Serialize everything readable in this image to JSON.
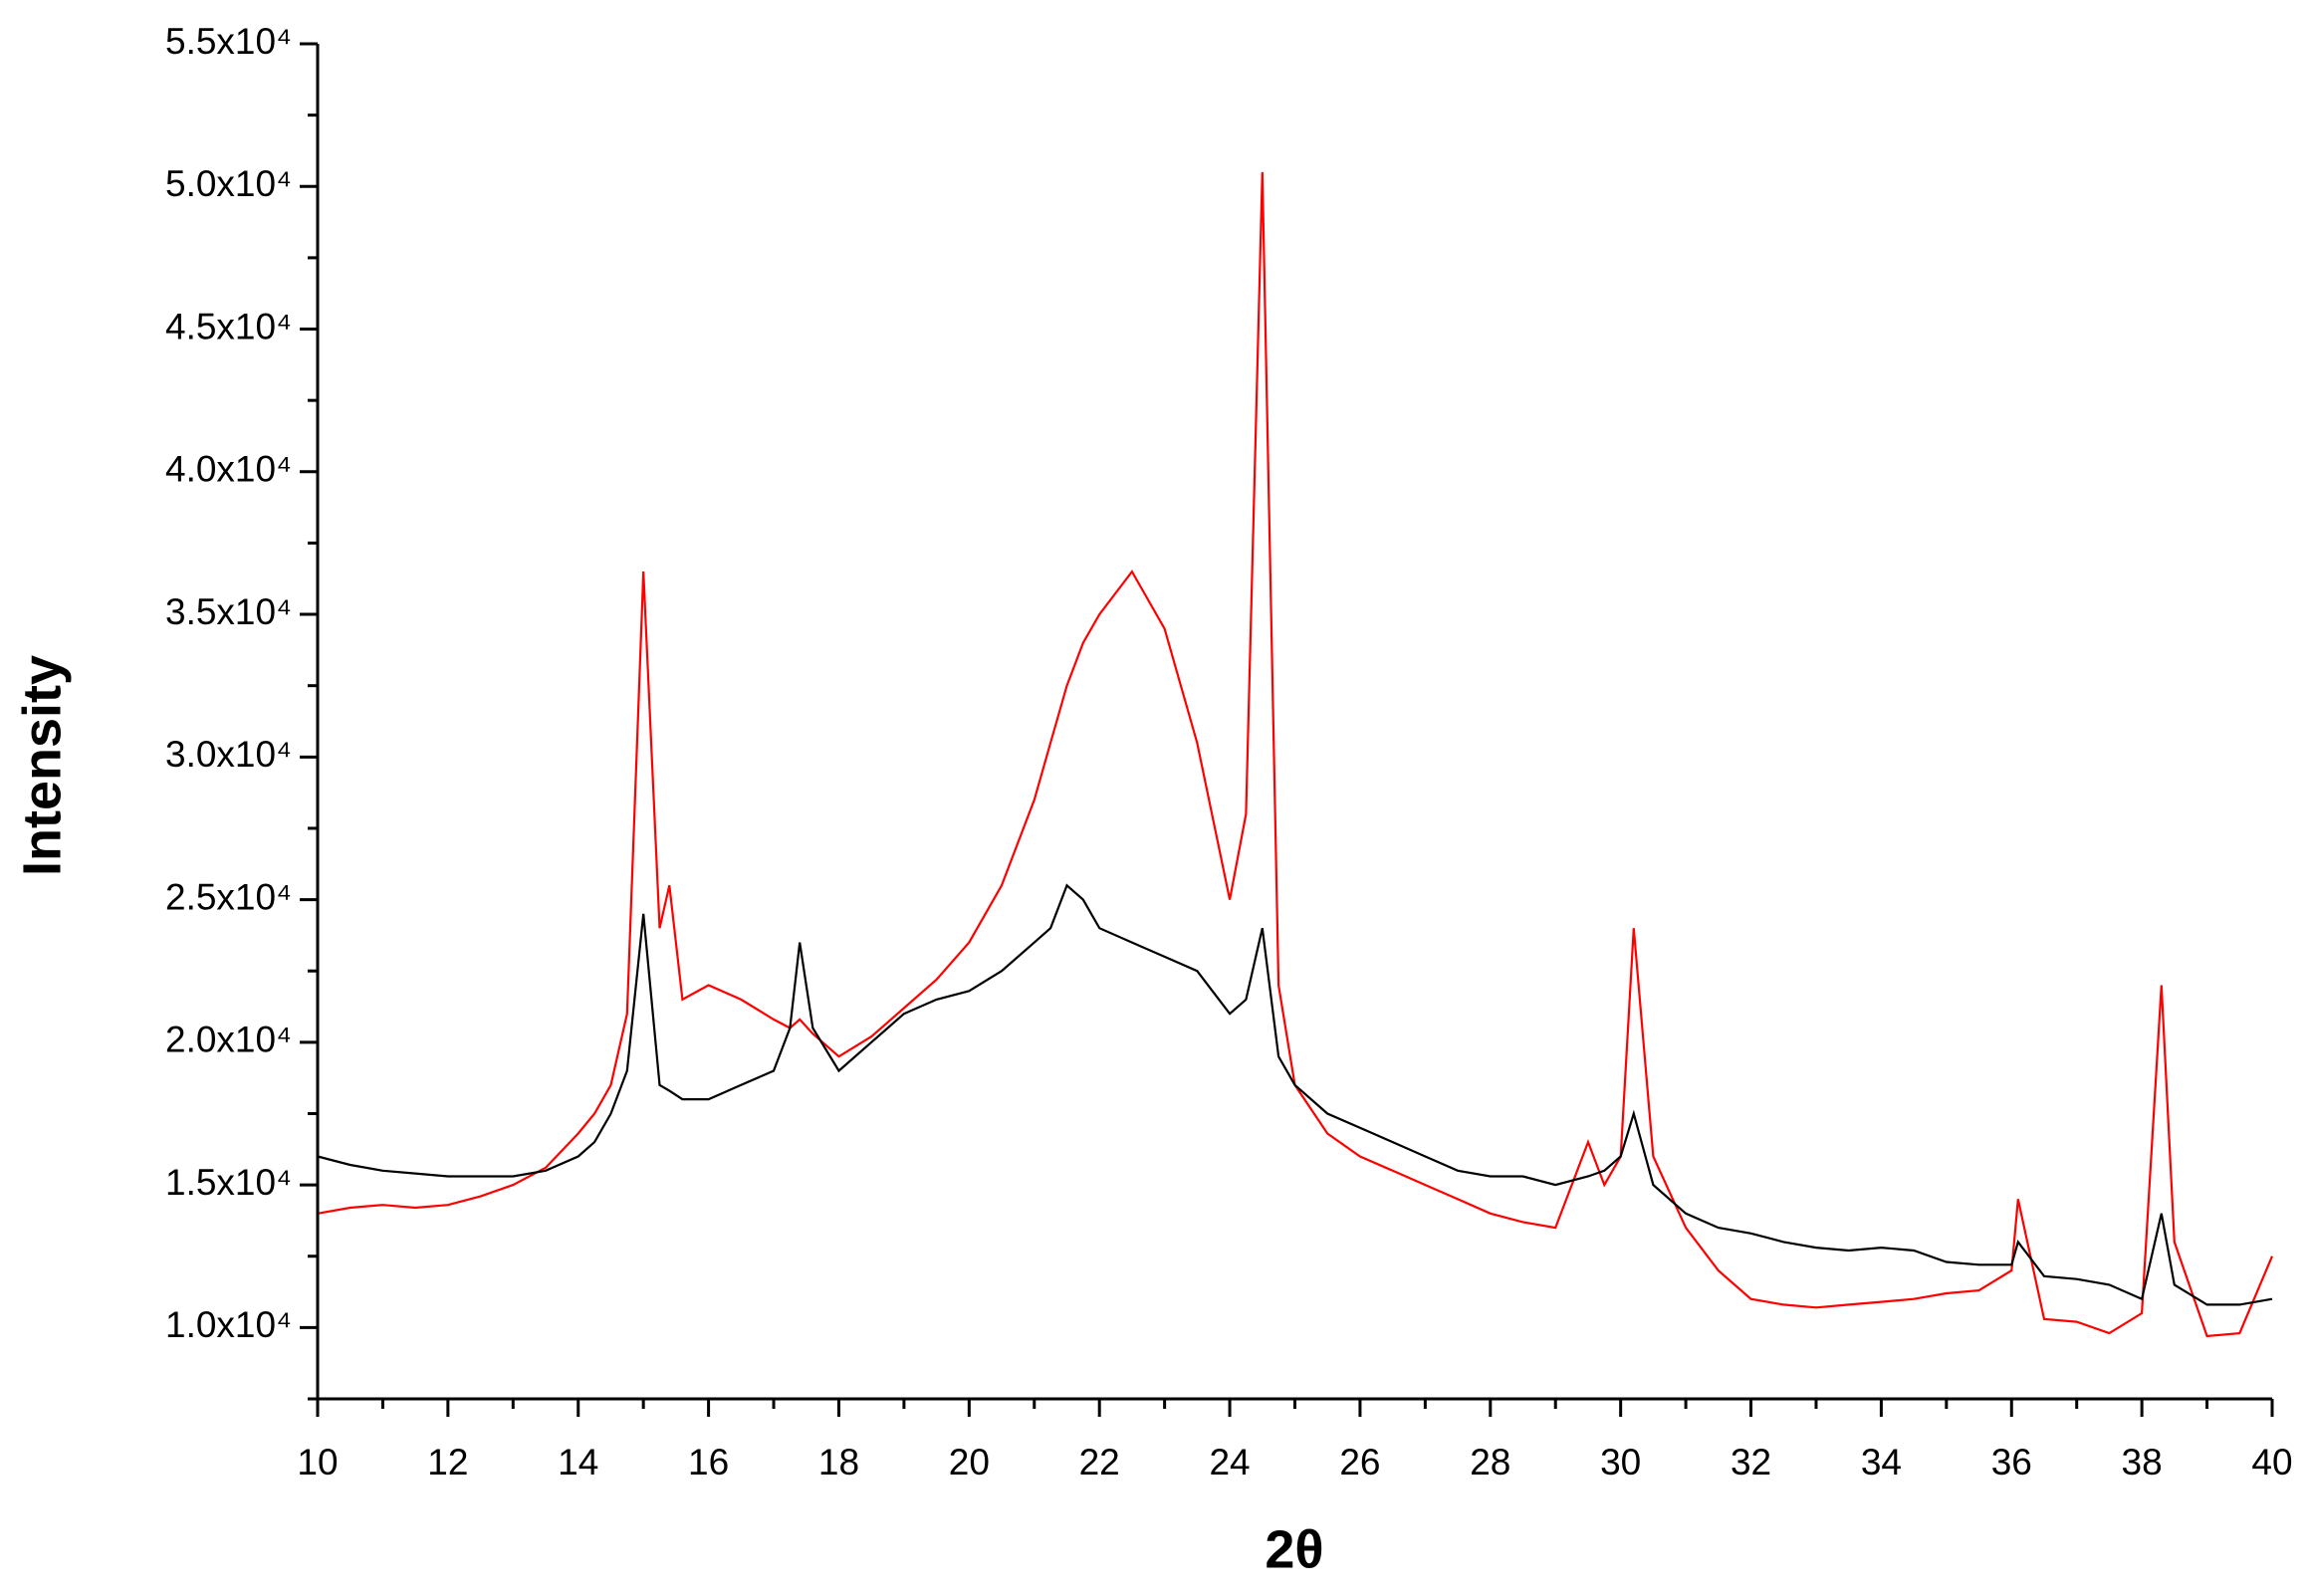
{
  "chart_data": {
    "type": "line",
    "xlabel": "2θ",
    "ylabel": "Intensity",
    "xlim": [
      10,
      40
    ],
    "ylim": [
      7500,
      55000
    ],
    "xticks": [
      10,
      12,
      14,
      16,
      18,
      20,
      22,
      24,
      26,
      28,
      30,
      32,
      34,
      36,
      38,
      40
    ],
    "yticks": [
      {
        "value": 10000,
        "label": "1.0x10⁴"
      },
      {
        "value": 15000,
        "label": "1.5x10⁴"
      },
      {
        "value": 20000,
        "label": "2.0x10⁴"
      },
      {
        "value": 25000,
        "label": "2.5x10⁴"
      },
      {
        "value": 30000,
        "label": "3.0x10⁴"
      },
      {
        "value": 35000,
        "label": "3.5x10⁴"
      },
      {
        "value": 40000,
        "label": "4.0x10⁴"
      },
      {
        "value": 45000,
        "label": "4.5x10⁴"
      },
      {
        "value": 50000,
        "label": "5.0x10⁴"
      },
      {
        "value": 55000,
        "label": "5.5x10⁴"
      }
    ],
    "x": [
      10,
      10.5,
      11,
      11.5,
      12,
      12.5,
      13,
      13.5,
      14,
      14.25,
      14.5,
      14.75,
      15,
      15.25,
      15.4,
      15.6,
      16,
      16.5,
      17,
      17.25,
      17.4,
      17.6,
      18,
      18.5,
      19,
      19.5,
      20,
      20.5,
      21,
      21.25,
      21.5,
      21.75,
      22,
      22.5,
      23,
      23.5,
      24,
      24.25,
      24.5,
      24.75,
      25,
      25.5,
      26,
      26.5,
      27,
      27.5,
      28,
      28.5,
      29,
      29.5,
      29.75,
      30,
      30.2,
      30.5,
      31,
      31.5,
      32,
      32.5,
      33,
      33.5,
      34,
      34.5,
      35,
      35.5,
      36,
      36.1,
      36.5,
      37,
      37.5,
      38,
      38.3,
      38.5,
      39,
      39.5,
      40
    ],
    "series": [
      {
        "color": "#ff0000",
        "values": [
          14000,
          14200,
          14300,
          14200,
          14300,
          14600,
          15000,
          15600,
          16800,
          17500,
          18500,
          21000,
          36500,
          24000,
          25500,
          21500,
          22000,
          21500,
          20800,
          20500,
          20800,
          20300,
          19500,
          20200,
          21200,
          22200,
          23500,
          25500,
          28500,
          30500,
          32500,
          34000,
          35000,
          36500,
          34500,
          30500,
          25000,
          28000,
          50500,
          22000,
          18500,
          16800,
          16000,
          15500,
          15000,
          14500,
          14000,
          13700,
          13500,
          16500,
          15000,
          16000,
          24000,
          16000,
          13500,
          12000,
          11000,
          10800,
          10700,
          10800,
          10900,
          11000,
          11200,
          11300,
          12000,
          14500,
          10300,
          10200,
          9800,
          10500,
          22000,
          13000,
          9700,
          9800,
          12500
        ]
      },
      {
        "color": "#000000",
        "values": [
          16000,
          15700,
          15500,
          15400,
          15300,
          15300,
          15300,
          15500,
          16000,
          16500,
          17500,
          19000,
          24500,
          18500,
          18300,
          18000,
          18000,
          18500,
          19000,
          20500,
          23500,
          20500,
          19000,
          20000,
          21000,
          21500,
          21800,
          22500,
          23500,
          24000,
          25500,
          25000,
          24000,
          23500,
          23000,
          22500,
          21000,
          21500,
          24000,
          19500,
          18500,
          17500,
          17000,
          16500,
          16000,
          15500,
          15300,
          15300,
          15000,
          15300,
          15500,
          16000,
          17500,
          15000,
          14000,
          13500,
          13300,
          13000,
          12800,
          12700,
          12800,
          12700,
          12300,
          12200,
          12200,
          13000,
          11800,
          11700,
          11500,
          11000,
          14000,
          11500,
          10800,
          10800,
          11000
        ]
      }
    ]
  }
}
